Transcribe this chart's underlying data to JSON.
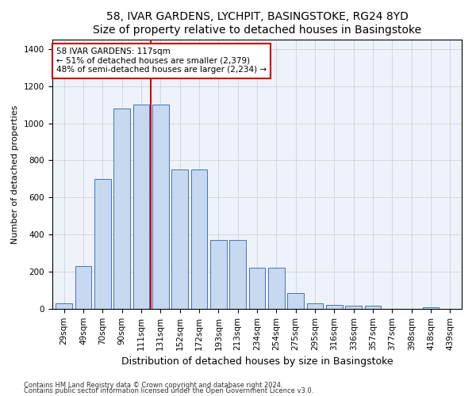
{
  "title": "58, IVAR GARDENS, LYCHPIT, BASINGSTOKE, RG24 8YD",
  "subtitle": "Size of property relative to detached houses in Basingstoke",
  "xlabel": "Distribution of detached houses by size in Basingstoke",
  "ylabel": "Number of detached properties",
  "categories": [
    "29sqm",
    "49sqm",
    "70sqm",
    "90sqm",
    "111sqm",
    "131sqm",
    "152sqm",
    "172sqm",
    "193sqm",
    "213sqm",
    "234sqm",
    "254sqm",
    "275sqm",
    "295sqm",
    "316sqm",
    "336sqm",
    "357sqm",
    "377sqm",
    "398sqm",
    "418sqm",
    "439sqm"
  ],
  "values": [
    30,
    230,
    700,
    1080,
    1100,
    1100,
    750,
    750,
    370,
    370,
    220,
    220,
    85,
    30,
    20,
    15,
    15,
    0,
    0,
    10,
    0
  ],
  "bar_color": "#c6d9f0",
  "bar_edge_color": "#4472c4",
  "vline_x": 4.5,
  "vline_color": "#cc0000",
  "annotation_text": "58 IVAR GARDENS: 117sqm\n← 51% of detached houses are smaller (2,379)\n48% of semi-detached houses are larger (2,234) →",
  "annotation_box_color": "#ffffff",
  "annotation_box_edge": "#cc0000",
  "footnote1": "Contains HM Land Registry data © Crown copyright and database right 2024.",
  "footnote2": "Contains public sector information licensed under the Open Government Licence v3.0.",
  "ylim": [
    0,
    1450
  ],
  "yticks": [
    0,
    200,
    400,
    600,
    800,
    1000,
    1200,
    1400
  ],
  "title_fontsize": 10,
  "xlabel_fontsize": 9,
  "ylabel_fontsize": 8,
  "tick_fontsize": 7.5,
  "annot_fontsize": 7.5,
  "footnote_fontsize": 6.0,
  "background_color": "#eef2fb"
}
